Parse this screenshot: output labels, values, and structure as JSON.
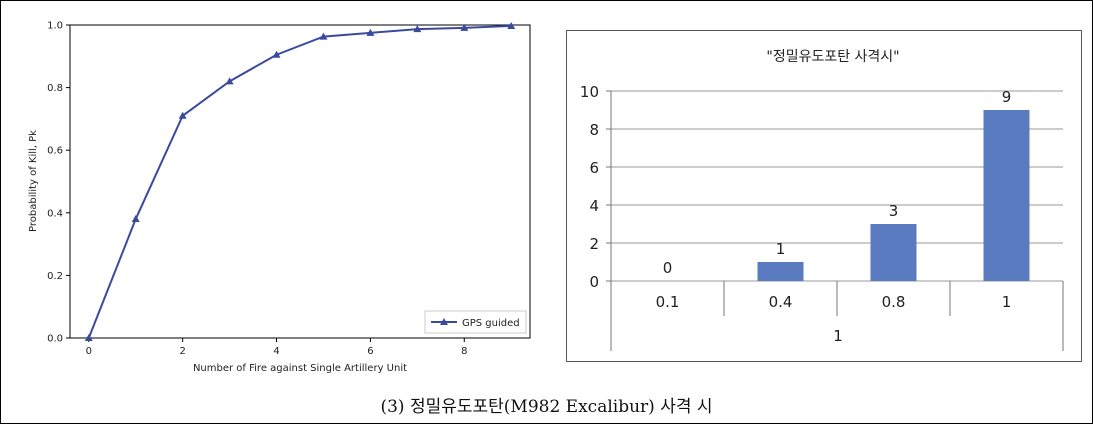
{
  "caption": "(3) 정밀유도포탄(M982 Excalibur) 사격 시",
  "chart_data": [
    {
      "type": "line",
      "title": "",
      "xlabel": "Number of Fire against Single Artillery Unit",
      "ylabel": "Probability of Kill, Pk",
      "xlim": [
        -0.4,
        9.4
      ],
      "ylim": [
        0.0,
        1.0
      ],
      "x_ticks": [
        0,
        2,
        4,
        6,
        8
      ],
      "y_ticks": [
        0.0,
        0.2,
        0.4,
        0.6,
        0.8,
        1.0
      ],
      "x_tick_labels": [
        "0",
        "2",
        "4",
        "6",
        "8"
      ],
      "y_tick_labels": [
        "0.0",
        "0.2",
        "0.4",
        "0.6",
        "0.8",
        "1.0"
      ],
      "legend": "bottom-right",
      "grid": false,
      "series": [
        {
          "name": "GPS guided",
          "color": "#3a4a9f",
          "marker": "triangle",
          "x": [
            0,
            1,
            2,
            3,
            4,
            5,
            6,
            7,
            8,
            9
          ],
          "y": [
            0.0,
            0.38,
            0.71,
            0.82,
            0.905,
            0.963,
            0.975,
            0.987,
            0.991,
            0.997
          ]
        }
      ]
    },
    {
      "type": "bar",
      "title": "\"정밀유도포탄 사격시\"",
      "categories": [
        "0.1",
        "0.4",
        "0.8",
        "1"
      ],
      "group_label": "1",
      "values": [
        0,
        1,
        3,
        9
      ],
      "data_labels": [
        "0",
        "1",
        "3",
        "9"
      ],
      "ylim": [
        0,
        10
      ],
      "y_ticks": [
        0,
        2,
        4,
        6,
        8,
        10
      ],
      "y_tick_labels": [
        "0",
        "2",
        "4",
        "6",
        "8",
        "10"
      ],
      "color": "#5b7bc0",
      "grid": true,
      "legend": "none"
    }
  ]
}
